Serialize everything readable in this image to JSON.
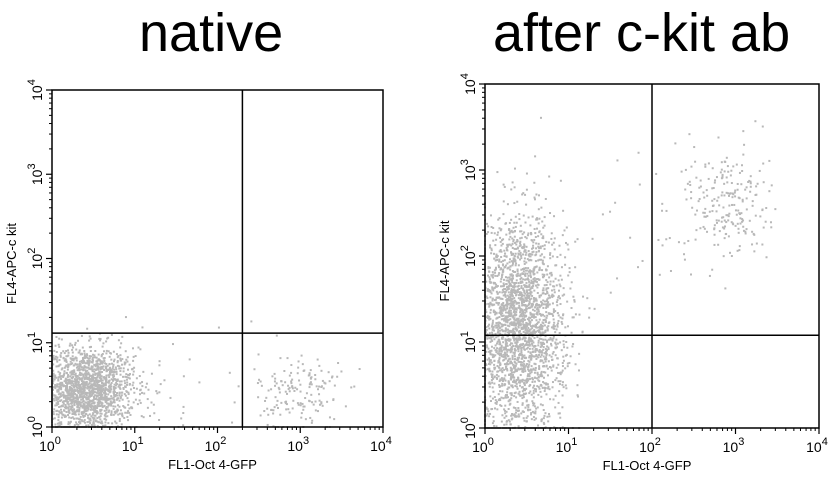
{
  "chart_data": [
    {
      "type": "scatter",
      "title": "native",
      "xlabel": "FL1-Oct 4-GFP",
      "ylabel": "FL4-APC-c kit",
      "x_scale": "log",
      "y_scale": "log",
      "xlim": [
        1,
        10000
      ],
      "ylim": [
        1,
        10000
      ],
      "x_ticks": [
        "10^0",
        "10^1",
        "10^2",
        "10^3",
        "10^4"
      ],
      "y_ticks": [
        "10^0",
        "10^1",
        "10^2",
        "10^3",
        "10^4"
      ],
      "quadrant_gate": {
        "x": 200,
        "y": 13
      },
      "grid": false,
      "point_color": "#b8b8b8",
      "populations": [
        {
          "x_center": 2.5,
          "y_center": 2.8,
          "x_spread_decades": 0.3,
          "y_spread_decades": 0.25,
          "count": 1800
        },
        {
          "x_center": 1000,
          "y_center": 2.5,
          "x_spread_decades": 0.25,
          "y_spread_decades": 0.25,
          "count": 160
        },
        {
          "x_center": 30,
          "y_center": 3,
          "x_spread_decades": 0.6,
          "y_spread_decades": 0.4,
          "count": 40
        }
      ]
    },
    {
      "type": "scatter",
      "title": "after c-kit ab",
      "xlabel": "FL1-Oct 4-GFP",
      "ylabel": "FL4-APC-c kit",
      "x_scale": "log",
      "y_scale": "log",
      "xlim": [
        1,
        10000
      ],
      "ylim": [
        1,
        10000
      ],
      "x_ticks": [
        "10^0",
        "10^1",
        "10^2",
        "10^3",
        "10^4"
      ],
      "y_ticks": [
        "10^0",
        "10^1",
        "10^2",
        "10^3",
        "10^4"
      ],
      "quadrant_gate": {
        "x": 100,
        "y": 12
      },
      "grid": false,
      "point_color": "#b8b8b8",
      "populations": [
        {
          "x_center": 2.5,
          "y_center": 15,
          "x_spread_decades": 0.28,
          "y_spread_decades": 0.6,
          "count": 2600
        },
        {
          "x_center": 800,
          "y_center": 400,
          "x_spread_decades": 0.25,
          "y_spread_decades": 0.35,
          "count": 220
        },
        {
          "x_center": 50,
          "y_center": 200,
          "x_spread_decades": 0.7,
          "y_spread_decades": 0.6,
          "count": 35
        }
      ]
    }
  ]
}
